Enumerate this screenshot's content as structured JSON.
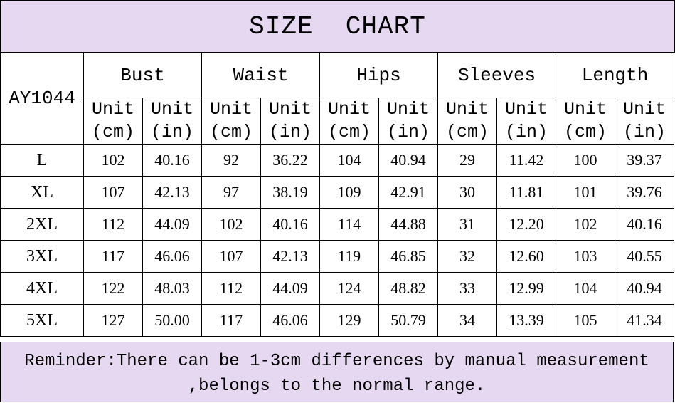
{
  "title": "SIZE  CHART",
  "style_code": "AY1044",
  "colors": {
    "header_background": "#e5d8f0",
    "border": "#000000"
  },
  "measurements": [
    "Bust",
    "Waist",
    "Hips",
    "Sleeves",
    "Length"
  ],
  "units": {
    "cm": "Unit (cm)",
    "in": "Unit (in)"
  },
  "rows": [
    {
      "size": "L",
      "values": [
        "102",
        "40.16",
        "92",
        "36.22",
        "104",
        "40.94",
        "29",
        "11.42",
        "100",
        "39.37"
      ]
    },
    {
      "size": "XL",
      "values": [
        "107",
        "42.13",
        "97",
        "38.19",
        "109",
        "42.91",
        "30",
        "11.81",
        "101",
        "39.76"
      ]
    },
    {
      "size": "2XL",
      "values": [
        "112",
        "44.09",
        "102",
        "40.16",
        "114",
        "44.88",
        "31",
        "12.20",
        "102",
        "40.16"
      ]
    },
    {
      "size": "3XL",
      "values": [
        "117",
        "46.06",
        "107",
        "42.13",
        "119",
        "46.85",
        "32",
        "12.60",
        "103",
        "40.55"
      ]
    },
    {
      "size": "4XL",
      "values": [
        "122",
        "48.03",
        "112",
        "44.09",
        "124",
        "48.82",
        "33",
        "12.99",
        "104",
        "40.94"
      ]
    },
    {
      "size": "5XL",
      "values": [
        "127",
        "50.00",
        "117",
        "46.06",
        "129",
        "50.79",
        "34",
        "13.39",
        "105",
        "41.34"
      ]
    }
  ],
  "reminder": {
    "line1": "Reminder:There can be 1-3cm differences by manual measurement",
    "line2": ",belongs to the normal range."
  }
}
